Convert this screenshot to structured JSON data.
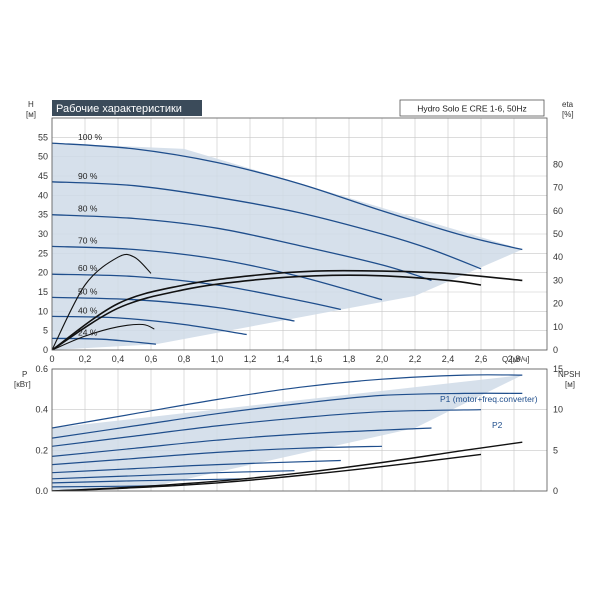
{
  "header": {
    "title": "Рабочие характеристики",
    "model": "Hydro Solo E CRE 1-6, 50Hz"
  },
  "colors": {
    "curve": "#1f4e8c",
    "operating_area": "#cfdbe7",
    "efficiency": "#111111",
    "title_bar": "#3b4b5a",
    "title_text": "#ffffff"
  },
  "chart_data": [
    {
      "type": "line",
      "title": "Рабочие характеристики",
      "xlabel": "Q [м³/ч]",
      "ylabel": "H\n[м]",
      "y2label": "eta\n[%]",
      "xlim": [
        0,
        3
      ],
      "ylim": [
        0,
        60
      ],
      "y2lim": [
        0,
        100
      ],
      "xticks": [
        "0",
        "0,2",
        "0,4",
        "0,6",
        "0,8",
        "1,0",
        "1,2",
        "1,4",
        "1,6",
        "1,8",
        "2,0",
        "2,2",
        "2,4",
        "2,6",
        "2,8"
      ],
      "yticks": [
        "0",
        "5",
        "10",
        "15",
        "20",
        "25",
        "30",
        "35",
        "40",
        "45",
        "50",
        "55"
      ],
      "y2ticks": [
        "0",
        "10",
        "20",
        "30",
        "40",
        "50",
        "60",
        "70",
        "80"
      ],
      "grid": true,
      "series": [
        {
          "name": "100 %",
          "x": [
            0,
            0.5,
            1.0,
            1.5,
            2.0,
            2.5,
            2.85
          ],
          "y": [
            53.5,
            52.0,
            48.5,
            43.0,
            36.0,
            29.5,
            26.0
          ]
        },
        {
          "name": "90 %",
          "x": [
            0,
            0.5,
            1.0,
            1.5,
            2.0,
            2.3,
            2.6
          ],
          "y": [
            43.5,
            42.5,
            39.5,
            35.5,
            30.0,
            26.0,
            21.0
          ]
        },
        {
          "name": "80 %",
          "x": [
            0,
            0.5,
            1.0,
            1.5,
            2.0,
            2.3
          ],
          "y": [
            35.0,
            34.0,
            31.5,
            27.0,
            22.0,
            18.0
          ]
        },
        {
          "name": "70 %",
          "x": [
            0,
            0.5,
            1.0,
            1.5,
            2.0
          ],
          "y": [
            26.8,
            26.0,
            23.5,
            19.0,
            13.0
          ]
        },
        {
          "name": "60 %",
          "x": [
            0,
            0.5,
            1.0,
            1.5,
            1.75
          ],
          "y": [
            19.6,
            19.0,
            16.8,
            12.8,
            10.5
          ]
        },
        {
          "name": "50 %",
          "x": [
            0,
            0.5,
            1.0,
            1.47
          ],
          "y": [
            13.6,
            13.0,
            11.0,
            7.5
          ]
        },
        {
          "name": "40 %",
          "x": [
            0,
            0.4,
            0.8,
            1.18
          ],
          "y": [
            8.7,
            8.3,
            6.6,
            4.0
          ]
        },
        {
          "name": "24 %",
          "x": [
            0,
            0.3,
            0.63
          ],
          "y": [
            3.0,
            2.8,
            1.5
          ]
        }
      ],
      "efficiency_curves": [
        {
          "x": [
            0,
            0.4,
            0.8,
            1.2,
            1.6,
            2.0,
            2.4,
            2.85
          ],
          "eta": [
            0,
            20,
            28,
            32,
            34,
            34,
            33,
            30
          ]
        },
        {
          "x": [
            0,
            0.4,
            0.8,
            1.2,
            1.6,
            2.0,
            2.4,
            2.6
          ],
          "eta": [
            0,
            18,
            26,
            30,
            32,
            32,
            30,
            28
          ]
        },
        {
          "x": [
            0,
            0.2,
            0.4,
            0.5,
            0.6
          ],
          "eta": [
            0,
            28,
            40,
            40,
            33
          ]
        },
        {
          "x": [
            0,
            0.2,
            0.4,
            0.55,
            0.62
          ],
          "eta": [
            0,
            6,
            10,
            11,
            9
          ]
        }
      ],
      "area_boundary": [
        [
          0,
          0
        ],
        [
          0,
          53.5
        ],
        [
          0.8,
          52.0
        ],
        [
          2.85,
          26.0
        ],
        [
          2.2,
          14.0
        ],
        [
          0.63,
          1.5
        ],
        [
          0,
          0
        ]
      ]
    },
    {
      "type": "line",
      "ylabel": "P\n[кВт]",
      "y2label": "NPSH\n[м]",
      "xlim": [
        0,
        3
      ],
      "ylim": [
        0,
        0.6
      ],
      "y2lim": [
        0,
        15
      ],
      "yticks": [
        "0.0",
        "0.2",
        "0.4",
        "0.6"
      ],
      "y2ticks": [
        "0",
        "5",
        "10",
        "15"
      ],
      "grid": true,
      "annotations": [
        "P1 (motor+freq.converter)",
        "P2"
      ],
      "series": [
        {
          "name": "P1 (motor+freq.converter)",
          "x": [
            0,
            0.5,
            1.0,
            1.5,
            2.0,
            2.5,
            2.85
          ],
          "y": [
            0.31,
            0.38,
            0.45,
            0.51,
            0.55,
            0.57,
            0.57
          ]
        },
        {
          "name": "P2",
          "x": [
            0,
            0.5,
            1.0,
            1.5,
            2.0,
            2.5,
            2.85
          ],
          "y": [
            0.26,
            0.32,
            0.38,
            0.43,
            0.47,
            0.48,
            0.48
          ]
        },
        {
          "x": [
            0,
            0.5,
            1.0,
            1.5,
            2.0,
            2.6
          ],
          "y": [
            0.22,
            0.27,
            0.32,
            0.36,
            0.39,
            0.4
          ]
        },
        {
          "x": [
            0,
            0.5,
            1.0,
            1.5,
            2.3
          ],
          "y": [
            0.17,
            0.21,
            0.25,
            0.28,
            0.31
          ]
        },
        {
          "x": [
            0,
            0.5,
            1.0,
            1.5,
            2.0
          ],
          "y": [
            0.13,
            0.16,
            0.19,
            0.21,
            0.22
          ]
        },
        {
          "x": [
            0,
            0.5,
            1.0,
            1.75
          ],
          "y": [
            0.09,
            0.11,
            0.13,
            0.15
          ]
        },
        {
          "x": [
            0,
            0.5,
            1.0,
            1.47
          ],
          "y": [
            0.06,
            0.075,
            0.09,
            0.1
          ]
        },
        {
          "x": [
            0,
            0.5,
            1.18
          ],
          "y": [
            0.04,
            0.05,
            0.06
          ]
        },
        {
          "x": [
            0,
            0.63
          ],
          "y": [
            0.02,
            0.025
          ]
        }
      ],
      "npsh_curves": [
        {
          "x": [
            0,
            0.5,
            1.0,
            1.5,
            2.0,
            2.5,
            2.85
          ],
          "npsh": [
            0,
            0.5,
            1.2,
            2.2,
            3.5,
            5.0,
            6.0
          ]
        },
        {
          "x": [
            0,
            0.5,
            1.0,
            1.5,
            2.0,
            2.6
          ],
          "npsh": [
            0,
            0.4,
            1.0,
            1.9,
            3.0,
            4.5
          ]
        }
      ],
      "area_boundary": [
        [
          0,
          0
        ],
        [
          0,
          0.31
        ],
        [
          2.85,
          0.57
        ],
        [
          2.2,
          0.31
        ],
        [
          0.63,
          0.025
        ],
        [
          0,
          0
        ]
      ]
    }
  ]
}
